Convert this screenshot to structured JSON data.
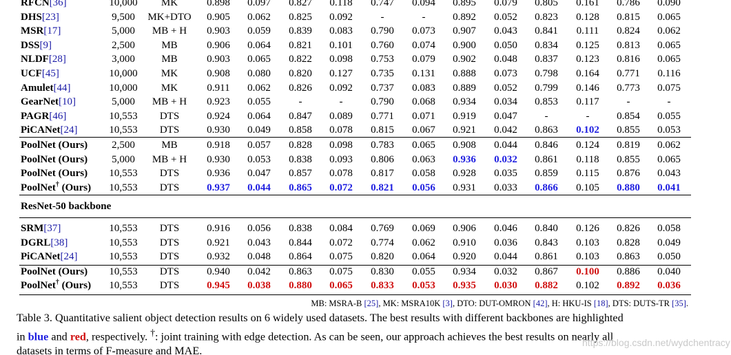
{
  "table": {
    "top_rows": [
      {
        "method": "RFCN",
        "ref": "[36]",
        "dagger": false,
        "img": "10,000",
        "train": "MK",
        "vals": [
          "0.898",
          "0.097",
          "0.827",
          "0.118",
          "0.747",
          "0.094",
          "0.895",
          "0.079",
          "0.805",
          "0.161",
          "0.786",
          "0.090"
        ]
      },
      {
        "method": "DHS",
        "ref": "[23]",
        "dagger": false,
        "img": "9,500",
        "train": "MK+DTO",
        "vals": [
          "0.905",
          "0.062",
          "0.825",
          "0.092",
          "-",
          "-",
          "0.892",
          "0.052",
          "0.823",
          "0.128",
          "0.815",
          "0.065"
        ]
      },
      {
        "method": "MSR",
        "ref": "[17]",
        "dagger": false,
        "img": "5,000",
        "train": "MB + H",
        "vals": [
          "0.903",
          "0.059",
          "0.839",
          "0.083",
          "0.790",
          "0.073",
          "0.907",
          "0.043",
          "0.841",
          "0.111",
          "0.824",
          "0.062"
        ]
      },
      {
        "method": "DSS",
        "ref": "[9]",
        "dagger": false,
        "img": "2,500",
        "train": "MB",
        "vals": [
          "0.906",
          "0.064",
          "0.821",
          "0.101",
          "0.760",
          "0.074",
          "0.900",
          "0.050",
          "0.834",
          "0.125",
          "0.813",
          "0.065"
        ]
      },
      {
        "method": "NLDF",
        "ref": "[28]",
        "dagger": false,
        "img": "3,000",
        "train": "MB",
        "vals": [
          "0.903",
          "0.065",
          "0.822",
          "0.098",
          "0.753",
          "0.079",
          "0.902",
          "0.048",
          "0.837",
          "0.123",
          "0.816",
          "0.065"
        ]
      },
      {
        "method": "UCF",
        "ref": "[45]",
        "dagger": false,
        "img": "10,000",
        "train": "MK",
        "vals": [
          "0.908",
          "0.080",
          "0.820",
          "0.127",
          "0.735",
          "0.131",
          "0.888",
          "0.073",
          "0.798",
          "0.164",
          "0.771",
          "0.116"
        ]
      },
      {
        "method": "Amulet",
        "ref": "[44]",
        "dagger": false,
        "img": "10,000",
        "train": "MK",
        "vals": [
          "0.911",
          "0.062",
          "0.826",
          "0.092",
          "0.737",
          "0.083",
          "0.889",
          "0.052",
          "0.799",
          "0.146",
          "0.773",
          "0.075"
        ]
      },
      {
        "method": "GearNet",
        "ref": "[10]",
        "dagger": false,
        "img": "5,000",
        "train": "MB + H",
        "vals": [
          "0.923",
          "0.055",
          "-",
          "-",
          "0.790",
          "0.068",
          "0.934",
          "0.034",
          "0.853",
          "0.117",
          "-",
          "-"
        ]
      },
      {
        "method": "PAGR",
        "ref": "[46]",
        "dagger": false,
        "img": "10,553",
        "train": "DTS",
        "vals": [
          "0.924",
          "0.064",
          "0.847",
          "0.089",
          "0.771",
          "0.071",
          "0.919",
          "0.047",
          "-",
          "-",
          "0.854",
          "0.055"
        ]
      },
      {
        "method": "PiCANet",
        "ref": "[24]",
        "dagger": false,
        "img": "10,553",
        "train": "DTS",
        "vals": [
          "0.930",
          "0.049",
          "0.858",
          "0.078",
          "0.815",
          "0.067",
          "0.921",
          "0.042",
          "0.863",
          "0.102",
          "0.855",
          "0.053"
        ],
        "hl": {
          "9": "blue"
        }
      },
      {
        "method": "PoolNet (Ours)",
        "ref": "",
        "dagger": false,
        "img": "2,500",
        "train": "MB",
        "vals": [
          "0.918",
          "0.057",
          "0.828",
          "0.098",
          "0.783",
          "0.065",
          "0.908",
          "0.044",
          "0.846",
          "0.124",
          "0.819",
          "0.062"
        ]
      },
      {
        "method": "PoolNet (Ours)",
        "ref": "",
        "dagger": false,
        "img": "5,000",
        "train": "MB + H",
        "vals": [
          "0.930",
          "0.053",
          "0.838",
          "0.093",
          "0.806",
          "0.063",
          "0.936",
          "0.032",
          "0.861",
          "0.118",
          "0.855",
          "0.065"
        ],
        "hl": {
          "6": "blue",
          "7": "blue"
        }
      },
      {
        "method": "PoolNet (Ours)",
        "ref": "",
        "dagger": false,
        "img": "10,553",
        "train": "DTS",
        "vals": [
          "0.936",
          "0.047",
          "0.857",
          "0.078",
          "0.817",
          "0.058",
          "0.928",
          "0.035",
          "0.859",
          "0.115",
          "0.876",
          "0.043"
        ]
      },
      {
        "method": "PoolNet",
        "ref": "",
        "dagger": true,
        "suffix": " (Ours)",
        "img": "10,553",
        "train": "DTS",
        "vals": [
          "0.937",
          "0.044",
          "0.865",
          "0.072",
          "0.821",
          "0.056",
          "0.931",
          "0.033",
          "0.866",
          "0.105",
          "0.880",
          "0.041"
        ],
        "hl": {
          "0": "blue",
          "1": "blue",
          "2": "blue",
          "3": "blue",
          "4": "blue",
          "5": "blue",
          "8": "blue",
          "10": "blue",
          "11": "blue"
        }
      }
    ],
    "section_label": "ResNet-50 backbone",
    "bottom_rows": [
      {
        "method": "SRM",
        "ref": "[37]",
        "dagger": false,
        "img": "10,553",
        "train": "DTS",
        "vals": [
          "0.916",
          "0.056",
          "0.838",
          "0.084",
          "0.769",
          "0.069",
          "0.906",
          "0.046",
          "0.840",
          "0.126",
          "0.826",
          "0.058"
        ]
      },
      {
        "method": "DGRL",
        "ref": "[38]",
        "dagger": false,
        "img": "10,553",
        "train": "DTS",
        "vals": [
          "0.921",
          "0.043",
          "0.844",
          "0.072",
          "0.774",
          "0.062",
          "0.910",
          "0.036",
          "0.843",
          "0.103",
          "0.828",
          "0.049"
        ]
      },
      {
        "method": "PiCANet",
        "ref": "[24]",
        "dagger": false,
        "img": "10,553",
        "train": "DTS",
        "vals": [
          "0.932",
          "0.048",
          "0.864",
          "0.075",
          "0.820",
          "0.064",
          "0.920",
          "0.044",
          "0.861",
          "0.103",
          "0.863",
          "0.050"
        ]
      },
      {
        "method": "PoolNet (Ours)",
        "ref": "",
        "dagger": false,
        "img": "10,553",
        "train": "DTS",
        "vals": [
          "0.940",
          "0.042",
          "0.863",
          "0.075",
          "0.830",
          "0.055",
          "0.934",
          "0.032",
          "0.867",
          "0.100",
          "0.886",
          "0.040"
        ],
        "hl": {
          "9": "red"
        }
      },
      {
        "method": "PoolNet",
        "ref": "",
        "dagger": true,
        "suffix": " (Ours)",
        "img": "10,553",
        "train": "DTS",
        "vals": [
          "0.945",
          "0.038",
          "0.880",
          "0.065",
          "0.833",
          "0.053",
          "0.935",
          "0.030",
          "0.882",
          "0.102",
          "0.892",
          "0.036"
        ],
        "hl": {
          "0": "red",
          "1": "red",
          "2": "red",
          "3": "red",
          "4": "red",
          "5": "red",
          "6": "red",
          "7": "red",
          "8": "red",
          "10": "red",
          "11": "red"
        }
      }
    ]
  },
  "footnote": {
    "parts": [
      {
        "t": "MB: MSRA-B "
      },
      {
        "t": "[25]",
        "ref": true
      },
      {
        "t": ", MK: MSRA10K "
      },
      {
        "t": "[3]",
        "ref": true
      },
      {
        "t": ", DTO: DUT-OMRON "
      },
      {
        "t": "[42]",
        "ref": true
      },
      {
        "t": ", H: HKU-IS "
      },
      {
        "t": "[18]",
        "ref": true
      },
      {
        "t": ", DTS: DUTS-TR "
      },
      {
        "t": "[35]",
        "ref": true
      },
      {
        "t": "."
      }
    ]
  },
  "caption": {
    "line1": "Table 3. Quantitative salient object detection results on 6 widely used datasets. The best results with different backbones are highlighted",
    "line2_a": "in ",
    "blue_word": "blue",
    "line2_b": " and ",
    "red_word": "red",
    "line2_c": ", respectively. ",
    "dagger": "†",
    "line2_d": ": joint training with edge detection. As can be seen, our approach achieves the best results on nearly all",
    "line3": "datasets in terms of F-measure and MAE."
  },
  "watermark": "https://blog.csdn.net/wydchentracy"
}
